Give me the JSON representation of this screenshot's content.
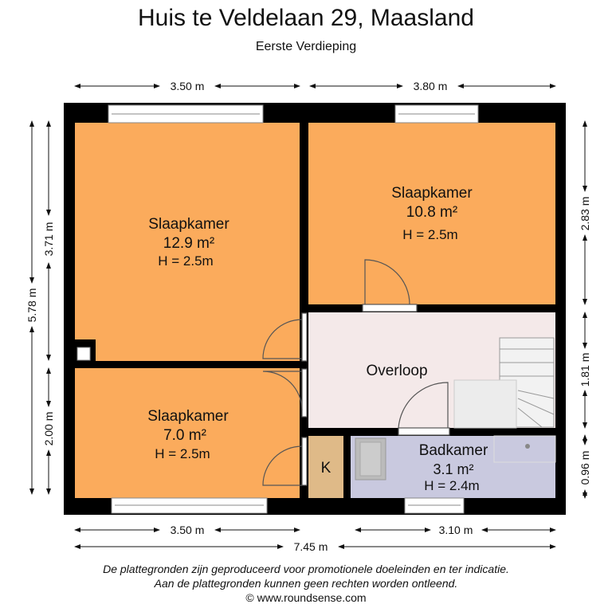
{
  "title": "Huis te Veldelaan 29, Maasland",
  "floor": "Eerste Verdieping",
  "rooms": [
    {
      "name": "Slaapkamer",
      "area": "12.9 m²",
      "height": "H = 2.5m",
      "color": "#fbab5c"
    },
    {
      "name": "Slaapkamer",
      "area": "10.8 m²",
      "height": "H = 2.5m",
      "color": "#fbab5c"
    },
    {
      "name": "Slaapkamer",
      "area": "7.0 m²",
      "height": "H = 2.5m",
      "color": "#fbab5c"
    },
    {
      "name": "Overloop",
      "color": "#f4e9e9"
    },
    {
      "name": "Badkamer",
      "area": "3.1 m²",
      "height": "H = 2.4m",
      "color": "#c9c9df"
    },
    {
      "name": "K",
      "color": "#dfba88"
    }
  ],
  "dimensions": {
    "top_left": "3.50 m",
    "top_right": "3.80 m",
    "bottom_left": "3.50 m",
    "bottom_right": "3.10 m",
    "bottom_total": "7.45 m",
    "left_total": "5.78 m",
    "left_upper": "3.71 m",
    "left_lower": "2.00 m",
    "right_upper": "2.83 m",
    "right_middle": "1.81 m",
    "right_lower": "0.96 m"
  },
  "footer": [
    "De plattegronden zijn geproduceerd voor promotionele doeleinden en ter indicatie.",
    "Aan de plattegronden kunnen geen rechten worden ontleend.",
    "© www.roundsense.com"
  ]
}
